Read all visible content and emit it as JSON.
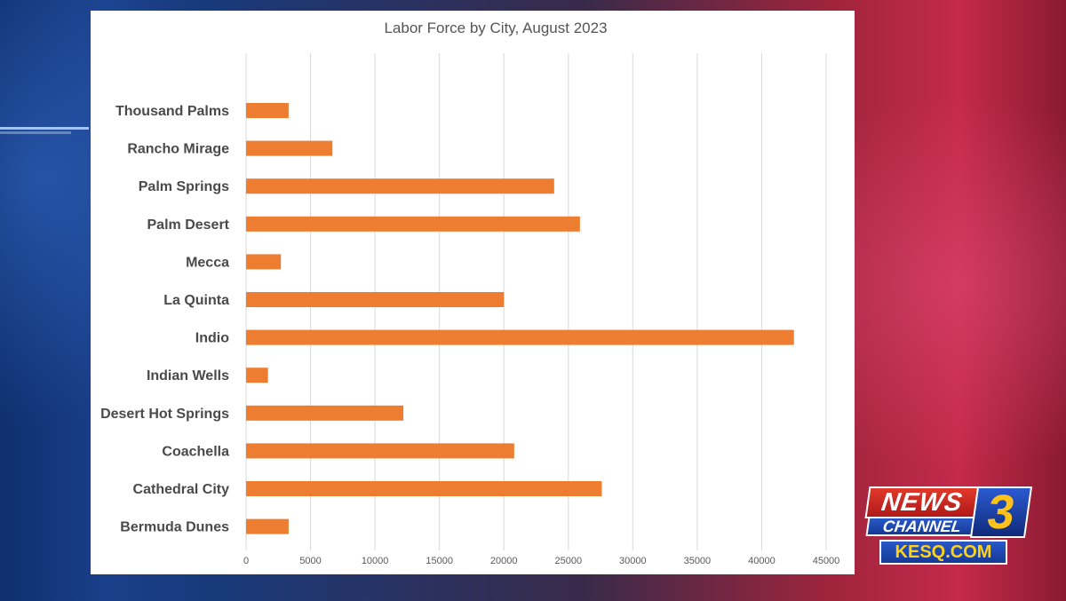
{
  "chart_data": {
    "type": "bar",
    "orientation": "horizontal",
    "title": "Labor Force by City, August 2023",
    "xlabel": "",
    "ylabel": "",
    "xlim": [
      0,
      45000
    ],
    "grid": true,
    "bar_color": "#ED7D31",
    "ticks": [
      "0",
      "5000",
      "10000",
      "15000",
      "20000",
      "25000",
      "30000",
      "35000",
      "40000",
      "45000"
    ],
    "categories": [
      "Thousand Palms",
      "Rancho Mirage",
      "Palm Springs",
      "Palm Desert",
      "Mecca",
      "La Quinta",
      "Indio",
      "Indian Wells",
      "Desert Hot Springs",
      "Coachella",
      "Cathedral City",
      "Bermuda Dunes"
    ],
    "values": [
      3300,
      6700,
      23900,
      25900,
      2700,
      20000,
      42500,
      1700,
      12200,
      20800,
      27600,
      3300
    ]
  },
  "logo": {
    "news": "NEWS",
    "channel": "CHANNEL",
    "number": "3",
    "site": "KESQ.COM",
    "colors": {
      "red": "#D42A1E",
      "blue": "#1E4AB0",
      "gold": "#FFC21A"
    }
  }
}
